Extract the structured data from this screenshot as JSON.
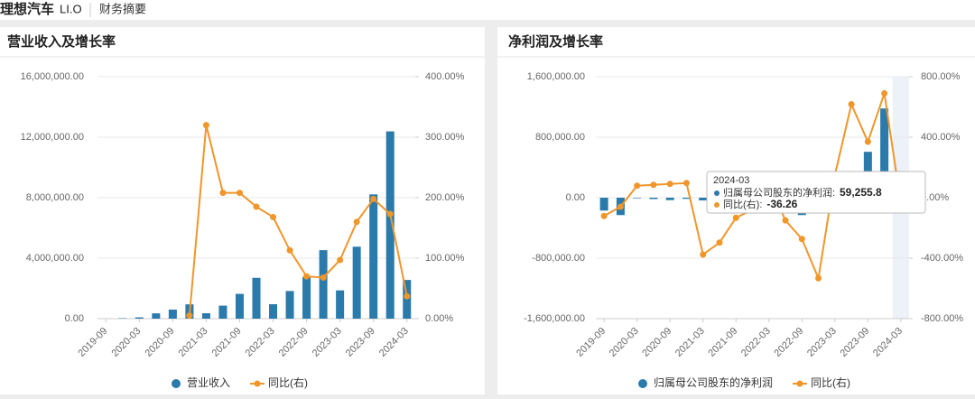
{
  "header": {
    "title": "理想汽车",
    "code": "LI.O",
    "section": "财务摘要"
  },
  "chart_data": [
    {
      "type": "bar",
      "title": "营业收入及增长率",
      "categories": [
        "2019-09",
        null,
        "2020-03",
        null,
        "2020-09",
        null,
        "2021-03",
        null,
        "2021-09",
        null,
        "2022-03",
        null,
        "2022-09",
        null,
        "2023-03",
        null,
        "2023-09",
        null,
        "2024-03"
      ],
      "series": [
        {
          "name": "营业收入",
          "type": "bar",
          "color": "#2a7aab",
          "values": [
            0,
            28410,
            85160,
            350000,
            600000,
            946000,
            358000,
            860000,
            1640000,
            2700000,
            956000,
            1830000,
            2760000,
            4530000,
            1870000,
            4760000,
            8220000,
            12385000,
            2560000
          ]
        },
        {
          "name": "同比(右)",
          "type": "line",
          "axis": "y2",
          "color": "#f0962b",
          "values": [
            null,
            null,
            null,
            null,
            null,
            5,
            320,
            208,
            208,
            185,
            168,
            113,
            70,
            68,
            97,
            160,
            198,
            173,
            37
          ]
        }
      ],
      "ylim": [
        0,
        16000000
      ],
      "yticks": [
        {
          "value": 0,
          "label": "0.00"
        },
        {
          "value": 4000000,
          "label": "4,000,000.00"
        },
        {
          "value": 8000000,
          "label": "8,000,000.00"
        },
        {
          "value": 12000000,
          "label": "12,000,000.00"
        },
        {
          "value": 16000000,
          "label": "16,000,000.00"
        }
      ],
      "y2lim": [
        0,
        400
      ],
      "y2ticks": [
        {
          "value": 0,
          "label": "0.00%"
        },
        {
          "value": 100,
          "label": "100.00%"
        },
        {
          "value": 200,
          "label": "200.00%"
        },
        {
          "value": 300,
          "label": "300.00%"
        },
        {
          "value": 400,
          "label": "400.00%"
        }
      ],
      "grid": true,
      "legend": "bottom"
    },
    {
      "type": "bar",
      "title": "净利润及增长率",
      "categories": [
        "2019-09",
        null,
        "2020-03",
        null,
        "2020-09",
        null,
        "2021-03",
        null,
        "2021-09",
        null,
        "2022-03",
        null,
        "2022-09",
        null,
        "2023-03",
        null,
        "2023-09",
        null,
        "2024-03"
      ],
      "series": [
        {
          "name": "归属母公司股东的净利润",
          "type": "bar",
          "color": "#2a7aab",
          "values": [
            -170000,
            -230000,
            -7700,
            -18000,
            -32000,
            -15000,
            -36000,
            -28000,
            -30000,
            -32000,
            -1000,
            -64000,
            -230000,
            -203000,
            93000,
            280000,
            607000,
            1180000,
            59255.8
          ],
          "value_labels": [
            null,
            null,
            null,
            null,
            null,
            null,
            null,
            null,
            null,
            null,
            null,
            null,
            null,
            null,
            null,
            null,
            null,
            null,
            "59,255.8"
          ]
        },
        {
          "name": "同比(右)",
          "type": "line",
          "axis": "y2",
          "color": "#f0962b",
          "values": [
            -121,
            -60,
            79,
            85,
            91,
            97,
            -376,
            -297,
            -133,
            -80,
            98,
            -150,
            -273,
            -533,
            150,
            618,
            370,
            690,
            -36.26
          ],
          "value_labels": [
            null,
            null,
            null,
            null,
            null,
            null,
            null,
            null,
            null,
            null,
            null,
            null,
            null,
            null,
            null,
            null,
            null,
            null,
            "-36.26"
          ]
        }
      ],
      "ylim": [
        -1600000,
        1600000
      ],
      "yticks": [
        {
          "value": -1600000,
          "label": "-1,600,000.00"
        },
        {
          "value": -800000,
          "label": "-800,000.00"
        },
        {
          "value": 0,
          "label": "0.00"
        },
        {
          "value": 800000,
          "label": "800,000.00"
        },
        {
          "value": 1600000,
          "label": "1,600,000.00"
        }
      ],
      "y2lim": [
        -800,
        800
      ],
      "y2ticks": [
        {
          "value": -800,
          "label": "-800.00%"
        },
        {
          "value": -400,
          "label": "-400.00%"
        },
        {
          "value": 0,
          "label": "0.00%"
        },
        {
          "value": 400,
          "label": "400.00%"
        },
        {
          "value": 800,
          "label": "800.00%"
        }
      ],
      "grid": true,
      "legend": "bottom"
    }
  ]
}
